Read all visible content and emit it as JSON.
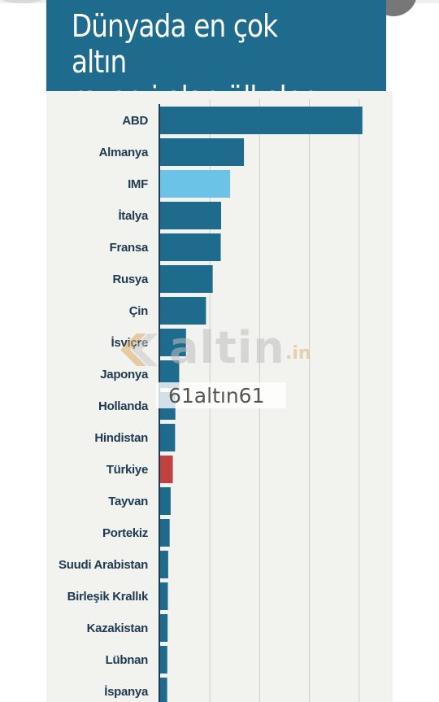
{
  "header": {
    "title": "Dünyada en çok altın\nrezervi olan ülkeler"
  },
  "watermark": {
    "logo_text": "altin",
    "logo_suffix": ".in",
    "caption": "61altın61"
  },
  "colors": {
    "header_bg": "#1f6b8e",
    "bar_default": "#1f6b8e",
    "bar_imf": "#6cc3e8",
    "bar_turkey": "#c0413f",
    "panel_bg": "#f2f2ef",
    "label": "#1e3a50"
  },
  "chart_data": {
    "type": "bar",
    "orientation": "horizontal",
    "title": "Dünyada en çok altın rezervi olan ülkeler",
    "xlabel": "",
    "ylabel": "",
    "categories": [
      "ABD",
      "Almanya",
      "IMF",
      "İtalya",
      "Fransa",
      "Rusya",
      "Çin",
      "İsviçre",
      "Japonya",
      "Hollanda",
      "Hindistan",
      "Türkiye",
      "Tayvan",
      "Portekiz",
      "Suudi Arabistan",
      "Birleşik Krallık",
      "Kazakistan",
      "Lübnan",
      "İspanya"
    ],
    "values": [
      8133,
      3370,
      2814,
      2452,
      2436,
      2113,
      1842,
      1040,
      765,
      612,
      600,
      508,
      422,
      382,
      323,
      310,
      300,
      287,
      282
    ],
    "bar_colors": [
      "#1f6b8e",
      "#1f6b8e",
      "#6cc3e8",
      "#1f6b8e",
      "#1f6b8e",
      "#1f6b8e",
      "#1f6b8e",
      "#1f6b8e",
      "#1f6b8e",
      "#1f6b8e",
      "#1f6b8e",
      "#c0413f",
      "#1f6b8e",
      "#1f6b8e",
      "#1f6b8e",
      "#1f6b8e",
      "#1f6b8e",
      "#1f6b8e",
      "#1f6b8e"
    ],
    "xlim": [
      0,
      8500
    ],
    "gridlines": [
      2000,
      4000,
      6000,
      8000
    ],
    "grid": true,
    "legend": "none"
  }
}
